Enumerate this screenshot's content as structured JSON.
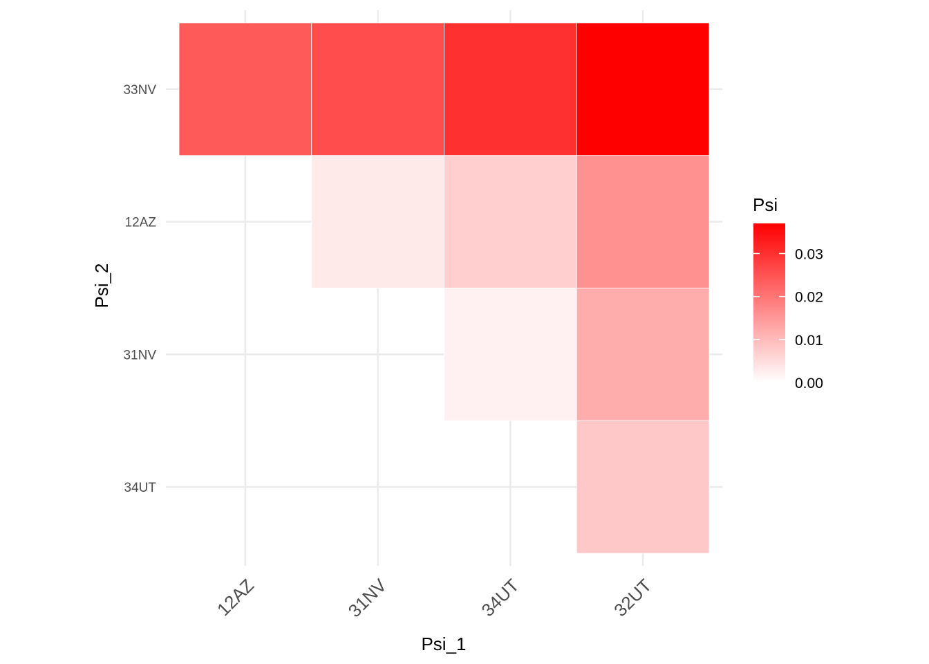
{
  "chart_data": {
    "type": "heatmap",
    "title": "",
    "xlabel": "Psi_1",
    "ylabel": "Psi_2",
    "x_categories": [
      "12AZ",
      "31NV",
      "34UT",
      "32UT"
    ],
    "y_categories": [
      "33NV",
      "12AZ",
      "31NV",
      "34UT"
    ],
    "cells": [
      {
        "x": "12AZ",
        "y": "33NV",
        "value": 0.024
      },
      {
        "x": "31NV",
        "y": "33NV",
        "value": 0.026
      },
      {
        "x": "34UT",
        "y": "33NV",
        "value": 0.03
      },
      {
        "x": "32UT",
        "y": "33NV",
        "value": 0.037
      },
      {
        "x": "31NV",
        "y": "12AZ",
        "value": 0.003
      },
      {
        "x": "34UT",
        "y": "12AZ",
        "value": 0.007
      },
      {
        "x": "32UT",
        "y": "12AZ",
        "value": 0.016
      },
      {
        "x": "34UT",
        "y": "31NV",
        "value": 0.002
      },
      {
        "x": "32UT",
        "y": "31NV",
        "value": 0.012
      },
      {
        "x": "32UT",
        "y": "34UT",
        "value": 0.008
      }
    ],
    "legend": {
      "title": "Psi",
      "placement": "right",
      "breaks": [
        0.0,
        0.01,
        0.02,
        0.03
      ],
      "labels": [
        "0.00",
        "0.01",
        "0.02",
        "0.03"
      ],
      "min": 0.0,
      "max": 0.037
    },
    "colors": {
      "low": "#ffffff",
      "high": "#ff0000"
    },
    "grid": true
  }
}
